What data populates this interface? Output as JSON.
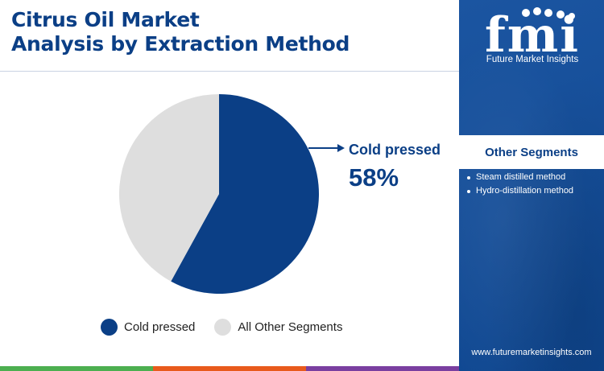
{
  "title": {
    "line1": "Citrus Oil Market",
    "line2": "Analysis by Extraction Method"
  },
  "chart_data": {
    "type": "pie",
    "categories": [
      "Cold pressed",
      "All Other Segments"
    ],
    "values": [
      58,
      42
    ],
    "colors": [
      "#0b3f86",
      "#dedede"
    ],
    "callout": {
      "label": "Cold pressed",
      "value": "58%"
    },
    "legend": [
      "Cold pressed",
      "All Other Segments"
    ],
    "legend_position": "bottom"
  },
  "panel": {
    "brand_mark": "fmi",
    "brand_name": "Future Market Insights",
    "segments_title": "Other Segments",
    "segments": [
      "Steam distilled method",
      "Hydro-distillation method"
    ],
    "url": "www.futuremarketinsights.com",
    "background": "#0f4c9c"
  },
  "bottom_bar_colors": [
    "#4caf50",
    "#e85a1c",
    "#7a3fa0"
  ]
}
